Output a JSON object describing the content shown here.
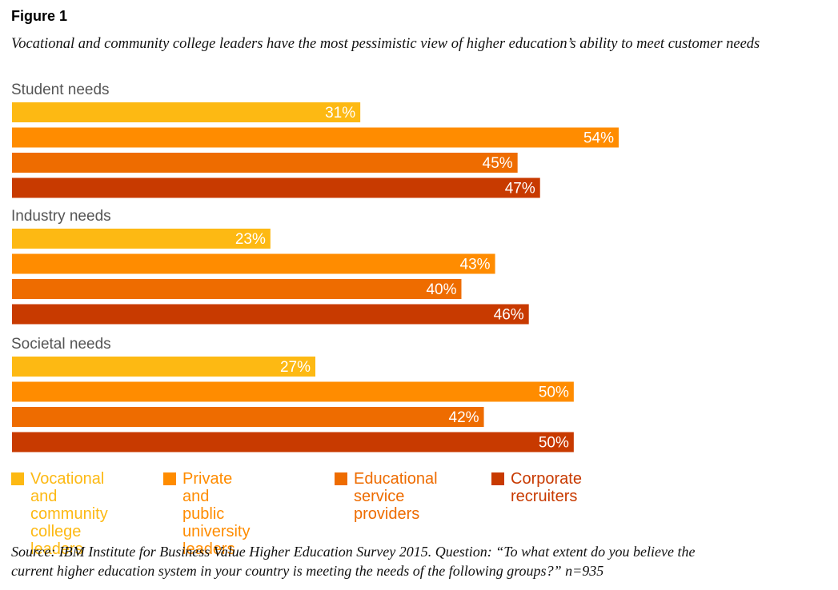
{
  "figure": {
    "title": "Figure 1",
    "subtitle": "Vocational and community college leaders have the most pessimistic view of higher education’s ability to meet customer needs",
    "source": "Source: IBM Institute for Business Value Higher Education Survey 2015. Question: “To what extent do you believe the\ncurrent higher education system in your country is meeting the needs of the following groups?” n=935"
  },
  "chart_data": {
    "type": "bar",
    "orientation": "horizontal",
    "title": "Vocational and community college leaders have the most pessimistic view of higher education’s ability to meet customer needs",
    "xlabel": "",
    "ylabel": "",
    "xlim": [
      0,
      54
    ],
    "grid": false,
    "legend_position": "bottom-left",
    "value_suffix": "%",
    "categories": [
      "Student needs",
      "Industry needs",
      "Societal needs"
    ],
    "series": [
      {
        "name": "Vocational and community college leaders",
        "color": "#FDB913",
        "values": [
          31,
          23,
          27
        ]
      },
      {
        "name": "Private and public university leaders",
        "color": "#FF8C00",
        "values": [
          54,
          43,
          50
        ]
      },
      {
        "name": "Educational service providers",
        "color": "#EE6C00",
        "values": [
          45,
          40,
          42
        ]
      },
      {
        "name": "Corporate recruiters",
        "color": "#C83A00",
        "values": [
          47,
          46,
          50
        ]
      }
    ]
  },
  "legend": [
    {
      "label": "Vocational and\ncommunity\ncollege leaders",
      "color": "#FDB913"
    },
    {
      "label": "Private and public\nuniversity leaders",
      "color": "#FF8C00"
    },
    {
      "label": "Educational\nservice providers",
      "color": "#EE6C00"
    },
    {
      "label": "Corporate\nrecruiters",
      "color": "#C83A00"
    }
  ]
}
